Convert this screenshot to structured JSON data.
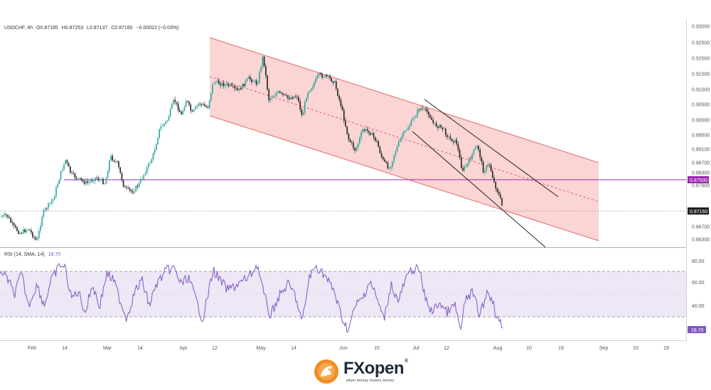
{
  "header": {
    "symbol": "USDCHF, 4h",
    "open": "O0.87185",
    "high": "H0.87253",
    "low": "L0.87137",
    "close": "C0.87160",
    "change": "−0.00022 (−0.03%)"
  },
  "rsi": {
    "label": "RSI (14, SMA, 14)",
    "value": "18.70",
    "badge": "18.70",
    "levels": [
      "80.00",
      "60.00",
      "40.00"
    ]
  },
  "price_axis": {
    "ticks": [
      "0.93000",
      "0.92500",
      "0.92000",
      "0.91500",
      "0.91000",
      "0.90500",
      "0.90000",
      "0.89500",
      "0.89100",
      "0.88700",
      "0.88300",
      "0.87900",
      "0.86700",
      "0.86300"
    ],
    "level_badge": "0.87500",
    "last_badge": "0.87160"
  },
  "time_axis": {
    "ticks": [
      "Feb",
      "14",
      "Mar",
      "14",
      "Apr",
      "12",
      "May",
      "14",
      "Jun",
      "15",
      "Jul",
      "12",
      "Aug",
      "10",
      "19",
      "Sep",
      "10",
      "19"
    ]
  },
  "colors": {
    "up": "#26a69a",
    "down": "#1f1f1f",
    "channel_fill": "#f9c6c6",
    "channel_line": "#e26a6a",
    "support": "#9c27b0",
    "rsi_line": "#7e57c2",
    "rsi_band": "#ede7f6"
  },
  "chart_data": {
    "type": "candlestick",
    "x": [
      "Feb 1",
      "Feb 14",
      "Mar 1",
      "Mar 14",
      "Apr 1",
      "Apr 12",
      "May 1",
      "May 14",
      "Jun 1",
      "Jun 15",
      "Jul 1",
      "Jul 12",
      "Aug 1"
    ],
    "close": [
      0.8685,
      0.8845,
      0.878,
      0.877,
      0.899,
      0.908,
      0.92,
      0.906,
      0.893,
      0.884,
      0.903,
      0.885,
      0.8716
    ],
    "levels": {
      "horizontal_support": 0.875,
      "last_price": 0.8716
    },
    "channel": {
      "upper_start": [
        0.927,
        "Apr 12"
      ],
      "upper_end": [
        0.887,
        "Aug 28"
      ],
      "lower_start": [
        0.901,
        "Apr 12"
      ],
      "lower_end": [
        0.862,
        "Aug 28"
      ]
    },
    "rsi": {
      "last": 18.7,
      "overbought": 70,
      "oversold": 30
    },
    "ylim": [
      0.862,
      0.931
    ]
  },
  "branding": {
    "name": "FXopen",
    "tagline": "when money makes money"
  }
}
